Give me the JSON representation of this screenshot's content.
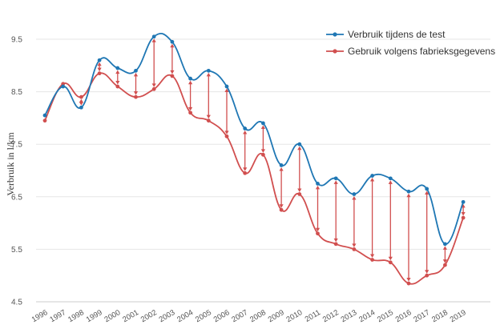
{
  "chart_data": {
    "type": "line",
    "title": "",
    "xlabel": "",
    "ylabel": "Verbruik in l/km",
    "x": [
      "1996",
      "1997",
      "1998",
      "1999",
      "2000",
      "2001",
      "2002",
      "2003",
      "2004",
      "2005",
      "2006",
      "2007",
      "2008",
      "2009",
      "2010",
      "2011",
      "2012",
      "2013",
      "2014",
      "2015",
      "2016",
      "2017",
      "2018",
      "2019"
    ],
    "yticks": [
      "4.5",
      "5.5",
      "6.5",
      "7.5",
      "8.5",
      "9.5"
    ],
    "ylim": [
      4.5,
      10.0
    ],
    "grid": true,
    "legend_position": "top-right",
    "series": [
      {
        "name": "Verbruik tijdens de test",
        "color": "#1f77b4",
        "values": [
          8.05,
          8.6,
          8.2,
          9.1,
          8.95,
          8.9,
          9.55,
          9.45,
          8.75,
          8.9,
          8.6,
          7.8,
          7.9,
          7.1,
          7.5,
          6.75,
          6.85,
          6.55,
          6.9,
          6.85,
          6.6,
          6.65,
          5.6,
          6.4
        ]
      },
      {
        "name": "Gebruik volgens fabrieksgegevens",
        "color": "#d14f4f",
        "values": [
          7.95,
          8.65,
          8.4,
          8.85,
          8.6,
          8.4,
          8.55,
          8.8,
          8.1,
          7.95,
          7.65,
          6.95,
          7.3,
          6.25,
          6.55,
          5.8,
          5.6,
          5.5,
          5.3,
          5.25,
          4.85,
          5.0,
          5.2,
          6.1
        ]
      }
    ],
    "difference_arrows": true
  }
}
